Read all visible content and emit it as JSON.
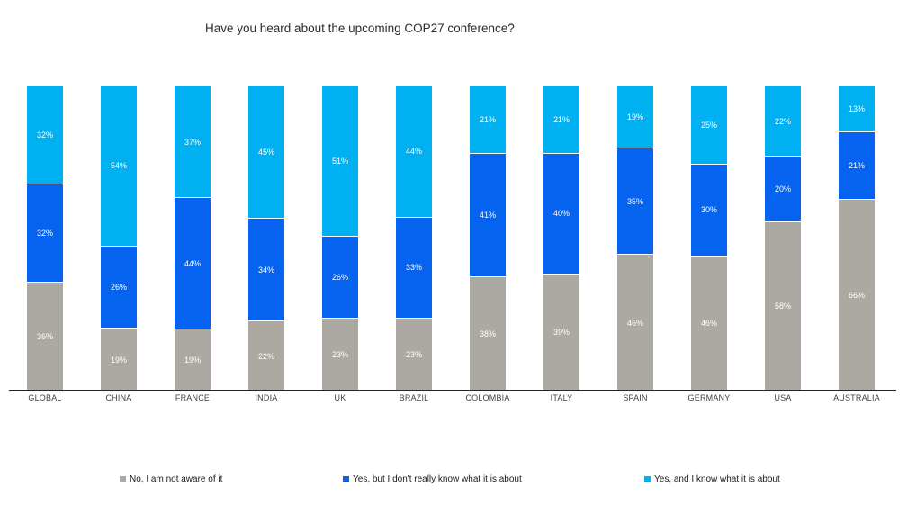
{
  "chart_data": {
    "type": "bar",
    "variant": "stacked-percent-column",
    "title": "Have you heard about the upcoming COP27 conference?",
    "categories": [
      "GLOBAL",
      "CHINA",
      "FRANCE",
      "INDIA",
      "UK",
      "BRAZIL",
      "COLOMBIA",
      "ITALY",
      "SPAIN",
      "GERMANY",
      "USA",
      "AUSTRALIA"
    ],
    "series": [
      {
        "name": "No, I am not aware of it",
        "color": "#ABA9A1",
        "values": [
          36,
          19,
          19,
          22,
          23,
          23,
          38,
          39,
          46,
          46,
          58,
          66
        ]
      },
      {
        "name": "Yes, but I don't really know what it is about",
        "color": "#0563F0",
        "values": [
          32,
          26,
          44,
          34,
          26,
          33,
          41,
          40,
          35,
          30,
          20,
          21
        ]
      },
      {
        "name": "Yes, and I know what it is about",
        "color": "#00B0F0",
        "values": [
          32,
          54,
          37,
          45,
          51,
          44,
          21,
          21,
          19,
          25,
          22,
          13
        ]
      }
    ],
    "value_suffix": "%",
    "data_labels": true,
    "data_label_color": "#ffffff",
    "axis_line_color": "#262626",
    "legend_position": "bottom",
    "grid": false,
    "ylim": [
      0,
      100
    ]
  }
}
